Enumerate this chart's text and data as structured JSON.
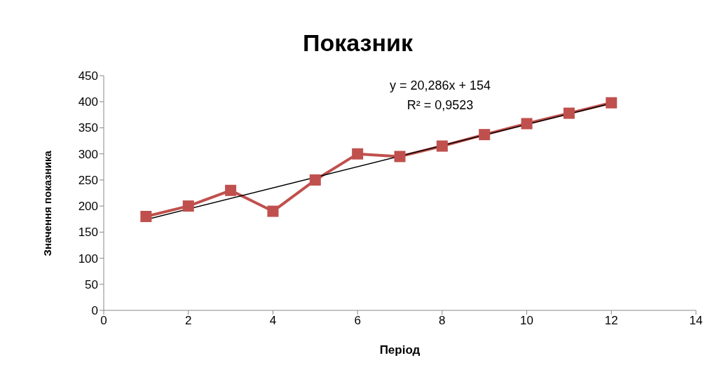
{
  "chart_data": {
    "type": "line",
    "title": "Показник",
    "xlabel": "Період",
    "ylabel": "Значення  показника",
    "x": [
      1,
      2,
      3,
      4,
      5,
      6,
      7,
      8,
      9,
      10,
      11,
      12
    ],
    "series": [
      {
        "color": "#c0504d",
        "values": [
          180,
          200,
          230,
          190,
          250,
          300,
          295,
          315,
          337,
          358,
          378,
          398
        ],
        "marker": "square"
      },
      {
        "type": "line",
        "color": "#000000",
        "x": [
          1,
          12
        ],
        "values": [
          174,
          397
        ],
        "marker": "none"
      }
    ],
    "xlim": [
      0,
      14
    ],
    "xticks": [
      0,
      2,
      4,
      6,
      8,
      10,
      12,
      14
    ],
    "ylim": [
      0,
      450
    ],
    "yticks": [
      0,
      50,
      100,
      150,
      200,
      250,
      300,
      350,
      400,
      450
    ],
    "annotations": [
      "y = 20,286x + 154",
      "R² = 0,9523"
    ]
  }
}
